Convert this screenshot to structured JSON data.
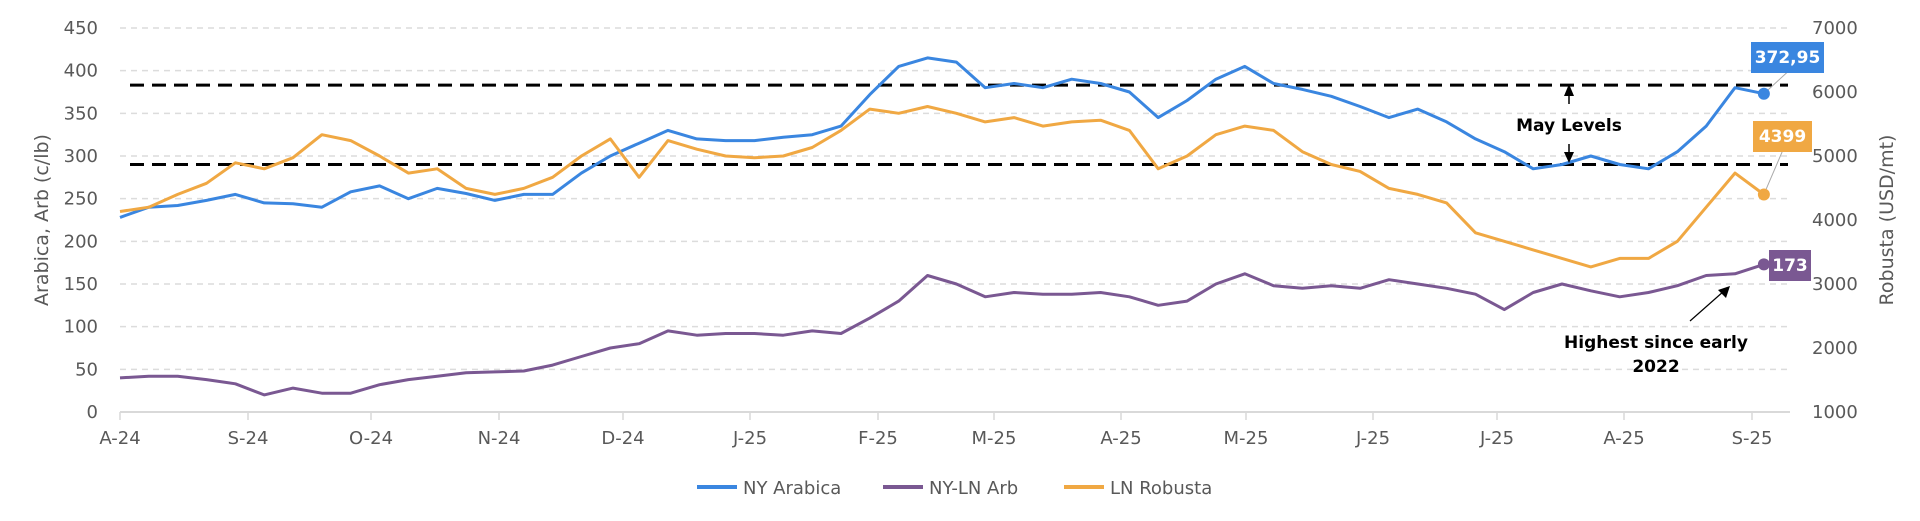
{
  "chart_data": {
    "type": "line",
    "x_start": "2024-08-01",
    "x_step": "1 week",
    "x_tick_labels": [
      "A-24",
      "S-24",
      "O-24",
      "N-24",
      "D-24",
      "J-25",
      "F-25",
      "M-25",
      "A-25",
      "M-25",
      "J-25",
      "J-25",
      "A-25",
      "S-25"
    ],
    "left_axis": {
      "label": "Arabica, Arb (c/lb)",
      "range": [
        0,
        450
      ],
      "ticks": [
        0,
        50,
        100,
        150,
        200,
        250,
        300,
        350,
        400,
        450
      ]
    },
    "right_axis": {
      "label": "Robusta (USD/mt)",
      "range": [
        1000,
        7000
      ],
      "ticks": [
        1000,
        2000,
        3000,
        4000,
        5000,
        6000,
        7000
      ]
    },
    "grid": true,
    "legend_position": "bottom-center",
    "series": [
      {
        "name": "NY Arabica",
        "axis": "left",
        "color": "#3a86e0",
        "last_label": "372,95",
        "values": [
          228,
          240,
          242,
          248,
          255,
          245,
          244,
          240,
          258,
          265,
          250,
          262,
          256,
          248,
          255,
          255,
          280,
          300,
          315,
          330,
          320,
          318,
          318,
          322,
          325,
          335,
          372,
          405,
          415,
          410,
          380,
          385,
          380,
          390,
          385,
          375,
          345,
          365,
          390,
          405,
          385,
          378,
          370,
          358,
          345,
          355,
          340,
          320,
          305,
          285,
          290,
          300,
          290,
          285,
          305,
          335,
          380,
          372.95
        ]
      },
      {
        "name": "NY-LN Arb",
        "axis": "left",
        "color": "#7a5892",
        "last_label": "173",
        "values": [
          40,
          42,
          42,
          38,
          33,
          20,
          28,
          22,
          22,
          32,
          38,
          42,
          46,
          47,
          48,
          55,
          65,
          75,
          80,
          95,
          90,
          92,
          92,
          90,
          95,
          92,
          110,
          130,
          160,
          150,
          135,
          140,
          138,
          138,
          140,
          135,
          125,
          130,
          150,
          162,
          148,
          145,
          148,
          145,
          155,
          150,
          145,
          138,
          120,
          140,
          150,
          142,
          135,
          140,
          148,
          160,
          162,
          173
        ]
      },
      {
        "name": "LN Robusta",
        "axis": "right",
        "color": "#f0a843",
        "last_label": "4399",
        "values": [
          4133,
          4200,
          4400,
          4573,
          4893,
          4800,
          4973,
          5333,
          5240,
          5000,
          4733,
          4800,
          4493,
          4400,
          4493,
          4667,
          5000,
          5267,
          4667,
          5240,
          5107,
          5000,
          4973,
          5000,
          5133,
          5400,
          5733,
          5667,
          5773,
          5667,
          5533,
          5600,
          5467,
          5533,
          5560,
          5400,
          4800,
          5000,
          5333,
          5467,
          5400,
          5067,
          4867,
          4760,
          4493,
          4400,
          4267,
          3800,
          3667,
          3533,
          3400,
          3267,
          3400,
          3400,
          3667,
          4200,
          4733,
          4399
        ]
      }
    ],
    "reference_lines": [
      {
        "axis": "left",
        "value": 383,
        "style": "dashed"
      },
      {
        "axis": "left",
        "value": 290,
        "style": "dashed"
      }
    ],
    "annotations": [
      {
        "text": "May Levels"
      },
      {
        "text_line1": "Highest since early",
        "text_line2": "2022"
      }
    ]
  }
}
